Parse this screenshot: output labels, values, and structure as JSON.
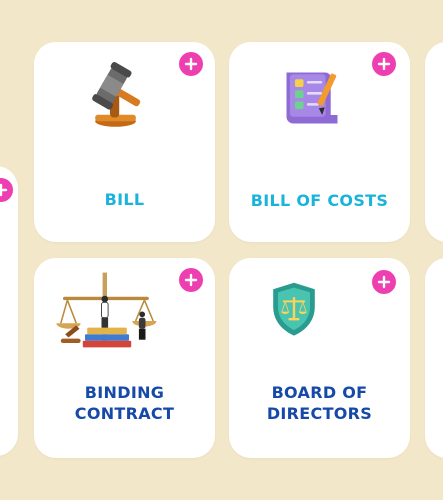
{
  "colors": {
    "background": "#f3e7c9",
    "card": "#ffffff",
    "add_button": "#ee3fb0",
    "title_cyan": "#1ab3dc",
    "title_blue": "#1649a8"
  },
  "cards": [
    {
      "title": "Bill",
      "icon": "gavel-icon"
    },
    {
      "title": "Bill of Costs",
      "icon": "invoice-document-icon"
    },
    {
      "title": "Binding Contract",
      "icon": "scales-books-icon"
    },
    {
      "title": "Board of Directors",
      "icon": "justice-shield-icon"
    }
  ]
}
